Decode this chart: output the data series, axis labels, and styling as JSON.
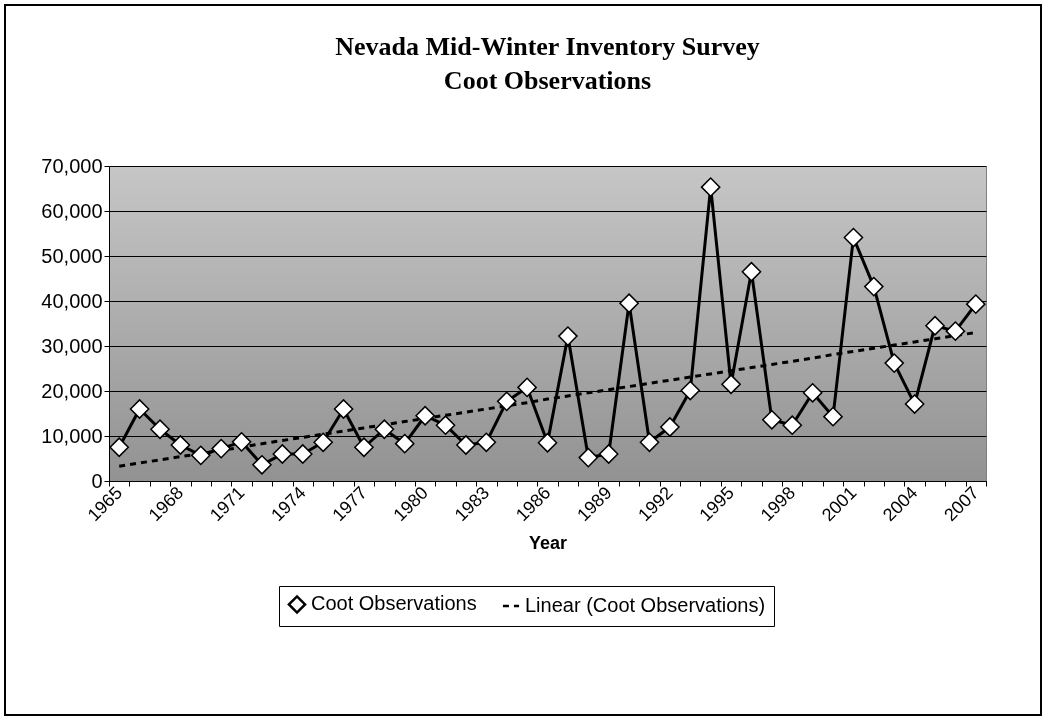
{
  "chart_data": {
    "type": "line",
    "title": "Nevada Mid-Winter Inventory Survey",
    "subtitle": "Coot Observations",
    "xlabel": "Year",
    "categories": [
      "1965",
      null,
      null,
      "1968",
      null,
      null,
      "1971",
      null,
      null,
      "1974",
      null,
      null,
      "1977",
      null,
      null,
      "1980",
      null,
      null,
      "1983",
      null,
      null,
      "1986",
      null,
      null,
      "1989",
      null,
      null,
      "1992",
      null,
      null,
      "1995",
      null,
      null,
      "1998",
      null,
      null,
      "2001",
      null,
      null,
      "2004",
      null,
      null,
      "2007"
    ],
    "series": [
      {
        "name": "Coot Observations",
        "color": "#000000",
        "marker": "diamond",
        "line_style": "solid",
        "values": [
          7500,
          16000,
          11500,
          8000,
          5700,
          7200,
          8700,
          3600,
          6000,
          6000,
          8600,
          16000,
          7500,
          11500,
          8300,
          14500,
          12400,
          8000,
          8600,
          17700,
          20800,
          8500,
          32200,
          5200,
          6000,
          39500,
          8600,
          12000,
          20100,
          65300,
          21500,
          46500,
          13600,
          12400,
          19600,
          14300,
          54100,
          43200,
          26200,
          17100,
          34500,
          33300,
          39300
        ]
      },
      {
        "name": "Linear (Coot Observations)",
        "color": "#000000",
        "marker": "none",
        "line_style": "dashed",
        "values": [
          3300,
          4000,
          4700,
          5400,
          6100,
          6800,
          7500,
          8300,
          9000,
          9700,
          10400,
          11100,
          11800,
          12500,
          13200,
          13900,
          14600,
          15300,
          16000,
          16700,
          17400,
          18200,
          18900,
          19600,
          20300,
          21000,
          21700,
          22400,
          23100,
          23800,
          24500,
          25200,
          25900,
          26600,
          27300,
          28100,
          28800,
          29500,
          30200,
          30900,
          31600,
          32300,
          33000
        ]
      }
    ],
    "ylim": [
      0,
      70000
    ],
    "yticks": [
      0,
      {
        "value": 10000,
        "label": "10,000"
      },
      {
        "value": 20000,
        "label": "20,000"
      },
      {
        "value": 30000,
        "label": "30,000"
      },
      {
        "value": 40000,
        "label": "40,000"
      },
      {
        "value": 50000,
        "label": "50,000"
      },
      {
        "value": 60000,
        "label": "60,000"
      },
      {
        "value": 70000,
        "label": "70,000"
      }
    ],
    "grid": "y",
    "legend": "bottom"
  }
}
